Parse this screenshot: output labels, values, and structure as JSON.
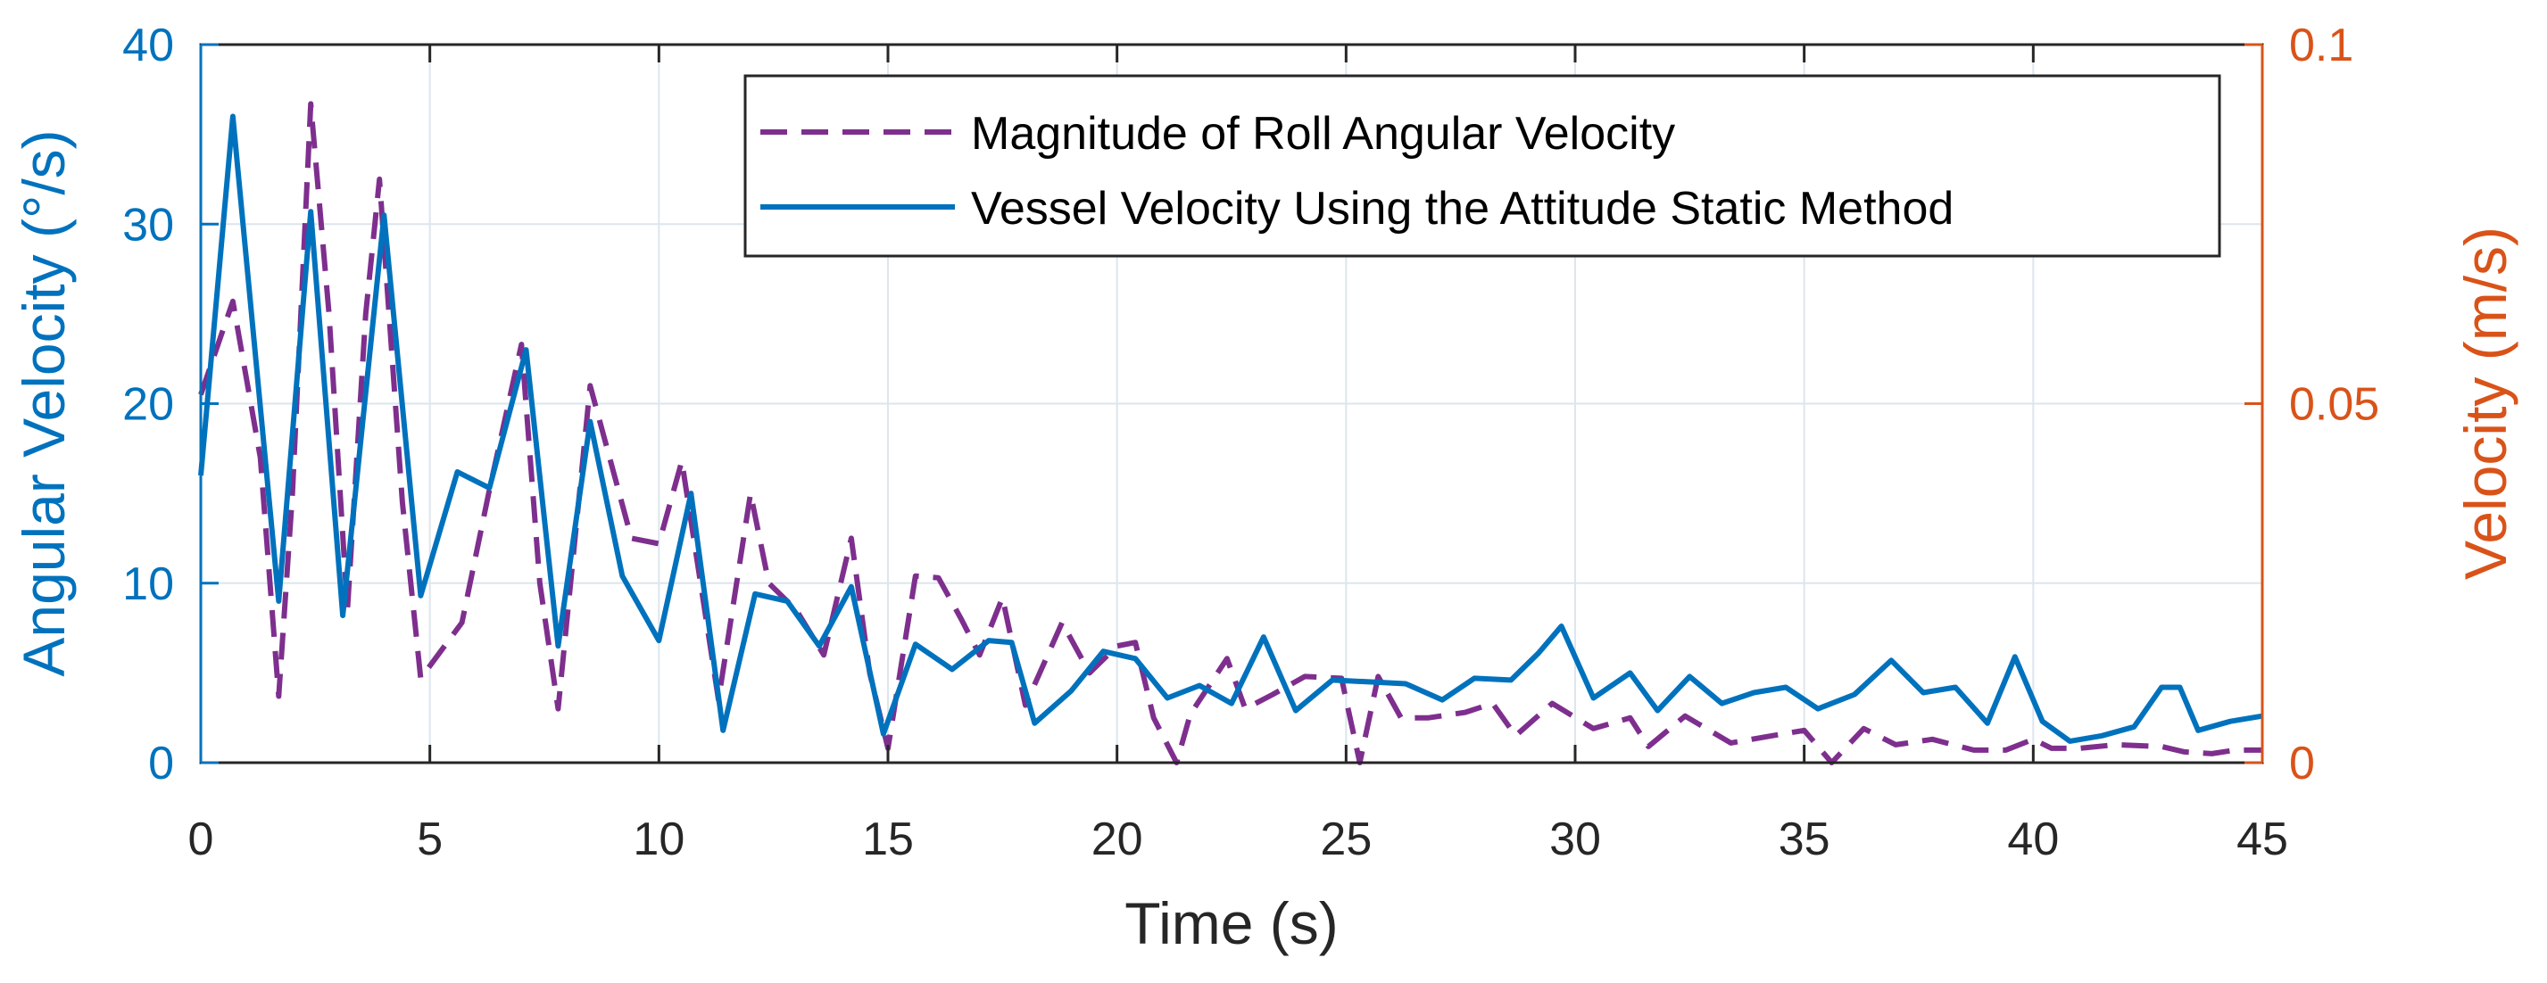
{
  "colors": {
    "left_axis": "#0072BD",
    "right_axis": "#D95319",
    "roll": "#7E2F8E",
    "vessel": "#0072BD",
    "grid": "#DCE6EE",
    "frame": "#262626"
  },
  "chart_data": {
    "type": "line",
    "xlabel": "Time (s)",
    "ylabel_left": "Angular Velocity (°/s)",
    "ylabel_right": "Velocity (m/s)",
    "xlim": [
      0,
      45
    ],
    "ylim_left": [
      0,
      40
    ],
    "ylim_right": [
      0,
      0.1
    ],
    "x_ticks": [
      0,
      5,
      10,
      15,
      20,
      25,
      30,
      35,
      40,
      45
    ],
    "x_tick_labels": [
      "0",
      "5",
      "10",
      "15",
      "20",
      "25",
      "30",
      "35",
      "40",
      "45"
    ],
    "y_left_ticks": [
      0,
      10,
      20,
      30,
      40
    ],
    "y_left_tick_labels": [
      "0",
      "10",
      "20",
      "30",
      "40"
    ],
    "y_right_ticks": [
      0,
      0.05,
      0.1
    ],
    "y_right_tick_labels": [
      "0",
      "0.05",
      "0.1"
    ],
    "grid": true,
    "legend_position": "top-right",
    "series": [
      {
        "name": "Magnitude of Roll Angular Velocity",
        "axis": "left",
        "style": "dashed",
        "x": [
          0,
          0.7,
          1.3,
          1.7,
          2.0,
          2.4,
          2.8,
          3.2,
          3.6,
          3.9,
          4.4,
          4.8,
          5.7,
          6.3,
          7.0,
          7.4,
          7.8,
          8.5,
          9.4,
          10.0,
          10.5,
          11.3,
          12.0,
          12.4,
          13.0,
          13.6,
          14.2,
          14.6,
          15.0,
          15.6,
          16.1,
          16.6,
          17.0,
          17.5,
          18.0,
          18.8,
          19.4,
          20.0,
          20.4,
          20.8,
          21.3,
          21.6,
          22.4,
          22.8,
          23.4,
          24.1,
          24.9,
          25.3,
          25.7,
          26.2,
          26.8,
          27.6,
          28.2,
          28.7,
          29.5,
          30.4,
          31.2,
          31.6,
          32.4,
          33.4,
          34.3,
          35.0,
          35.6,
          36.3,
          37.0,
          37.8,
          38.7,
          39.4,
          40.0,
          40.4,
          41.0,
          41.8,
          42.8,
          43.3,
          43.9,
          44.4,
          45.0
        ],
        "values": [
          20.5,
          25.7,
          17.0,
          3.7,
          15.0,
          36.7,
          25.0,
          8.5,
          25.0,
          32.5,
          14.5,
          4.7,
          7.8,
          15.2,
          23.3,
          10.0,
          3.0,
          21.0,
          12.5,
          12.2,
          16.8,
          3.5,
          15.0,
          10.0,
          8.5,
          6.0,
          12.5,
          5.0,
          0.8,
          10.4,
          10.3,
          8.0,
          6.0,
          9.2,
          3.2,
          7.8,
          5.0,
          6.5,
          6.7,
          2.5,
          0.0,
          2.7,
          5.8,
          3.0,
          3.8,
          4.8,
          4.7,
          0.0,
          4.8,
          2.5,
          2.5,
          2.8,
          3.3,
          1.5,
          3.3,
          1.9,
          2.5,
          0.9,
          2.6,
          1.1,
          1.5,
          1.8,
          0.0,
          1.9,
          1.0,
          1.3,
          0.7,
          0.7,
          1.3,
          0.8,
          0.8,
          1.0,
          0.9,
          0.6,
          0.5,
          0.7,
          0.7
        ]
      },
      {
        "name": "Vessel Velocity Using the Attitude Static Method",
        "axis": "left",
        "style": "solid",
        "x": [
          0,
          0.7,
          1.7,
          2.4,
          3.1,
          4.0,
          4.8,
          5.6,
          6.3,
          7.1,
          7.8,
          8.5,
          9.2,
          10.0,
          10.7,
          11.4,
          12.1,
          12.8,
          13.5,
          14.2,
          14.9,
          15.6,
          16.4,
          17.2,
          17.7,
          18.2,
          19.0,
          19.7,
          20.4,
          21.1,
          21.8,
          22.5,
          23.2,
          23.9,
          24.7,
          25.5,
          26.3,
          27.1,
          27.8,
          28.6,
          29.2,
          29.7,
          30.4,
          31.2,
          31.8,
          32.5,
          33.2,
          33.9,
          34.6,
          35.3,
          36.1,
          36.9,
          37.6,
          38.3,
          39.0,
          39.6,
          40.2,
          40.8,
          41.5,
          42.2,
          42.8,
          43.2,
          43.6,
          44.3,
          45.0
        ],
        "values": [
          16.0,
          36.0,
          9.0,
          30.7,
          8.2,
          30.5,
          9.3,
          16.2,
          15.3,
          23.0,
          6.5,
          19.0,
          10.4,
          6.8,
          15.0,
          1.8,
          9.4,
          9.0,
          6.5,
          9.8,
          1.6,
          6.6,
          5.2,
          6.8,
          6.7,
          2.2,
          4.0,
          6.2,
          5.8,
          3.6,
          4.3,
          3.3,
          7.0,
          2.9,
          4.6,
          4.5,
          4.4,
          3.5,
          4.7,
          4.6,
          6.1,
          7.6,
          3.6,
          5.0,
          2.9,
          4.8,
          3.3,
          3.9,
          4.2,
          3.0,
          3.8,
          5.7,
          3.9,
          4.2,
          2.2,
          5.9,
          2.3,
          1.2,
          1.5,
          2.0,
          4.2,
          4.2,
          1.8,
          2.3,
          2.6
        ]
      }
    ]
  }
}
